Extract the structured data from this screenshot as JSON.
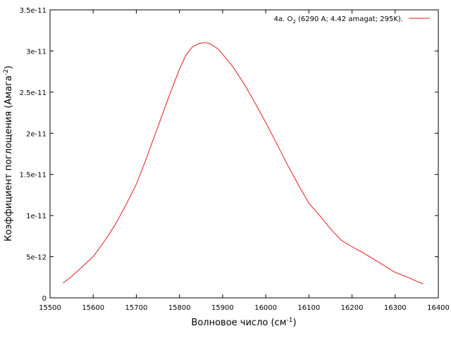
{
  "chart_data": {
    "type": "line",
    "xlabel": "Волновое число (см",
    "xlabel_sup": "-1",
    "xlabel_end": ")",
    "ylabel": "Коэффициент поглощения (Амага",
    "ylabel_sup": "-2",
    "ylabel_end": ")",
    "xlim": [
      15500,
      16400
    ],
    "ylim": [
      0,
      3.5e-11
    ],
    "x_ticks": [
      15500,
      15600,
      15700,
      15800,
      15900,
      16000,
      16100,
      16200,
      16300,
      16400
    ],
    "x_tick_labels": [
      "15500",
      "15600",
      "15700",
      "15800",
      "15900",
      "16000",
      "16100",
      "16200",
      "16300",
      "16400"
    ],
    "y_ticks": [
      0,
      5e-12,
      1e-11,
      1.5e-11,
      2e-11,
      2.5e-11,
      3e-11,
      3.5e-11
    ],
    "y_tick_labels": [
      "0",
      "5e-12",
      "1e-11",
      "1.5e-11",
      "2e-11",
      "2.5e-11",
      "3e-11",
      "3.5e-11"
    ],
    "grid": false,
    "legend_position": "top-right",
    "series": [
      {
        "name_prefix": "4a. O",
        "name_sub": "2",
        "name_suffix": " (6290 A; 4.42 amagat; 295K).",
        "color": "#e41a1c",
        "x": [
          15530,
          15550,
          15575,
          15600,
          15625,
          15650,
          15675,
          15700,
          15725,
          15750,
          15775,
          15800,
          15815,
          15830,
          15845,
          15855,
          15862,
          15870,
          15880,
          15890,
          15900,
          15925,
          15950,
          15975,
          16000,
          16025,
          16050,
          16075,
          16100,
          16125,
          16150,
          16175,
          16200,
          16225,
          16250,
          16275,
          16300,
          16325,
          16350,
          16365
        ],
        "y": [
          1.8e-12,
          2.6e-12,
          3.8e-12,
          5e-12,
          6.8e-12,
          8.8e-12,
          1.12e-11,
          1.38e-11,
          1.72e-11,
          2.08e-11,
          2.44e-11,
          2.78e-11,
          2.95e-11,
          3.05e-11,
          3.09e-11,
          3.1e-11,
          3.1e-11,
          3.09e-11,
          3.06e-11,
          3.02e-11,
          2.96e-11,
          2.8e-11,
          2.6e-11,
          2.37e-11,
          2.13e-11,
          1.88e-11,
          1.62e-11,
          1.38e-11,
          1.15e-11,
          1e-11,
          8.4e-12,
          7e-12,
          6.2e-12,
          5.5e-12,
          4.7e-12,
          3.9e-12,
          3.1e-12,
          2.6e-12,
          2e-12,
          1.7e-12
        ]
      }
    ]
  }
}
